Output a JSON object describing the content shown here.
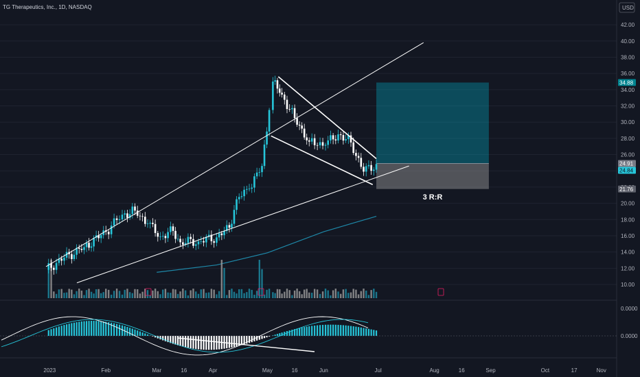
{
  "header": {
    "ticker": "TG Therapeutics, Inc., 1D, NASDAQ",
    "currency": "USD"
  },
  "colors": {
    "background": "#131722",
    "candle_up": "#26c6da",
    "candle_down": "#ffffff",
    "trendline": "#ffffff",
    "sma_line": "#1e88a8",
    "target_zone": "#00bcd4",
    "stop_zone": "#9e9e9e",
    "volume_up": "#1e8fa8",
    "volume_down": "#9e9e9e",
    "histogram_up": "#26c6da",
    "histogram_down": "#ffffff"
  },
  "annotation": {
    "rr_label": "3 R:R"
  },
  "price_tags": {
    "target": "34.88",
    "entry": "24.91",
    "last": "24.84",
    "stop": "21.76"
  },
  "oscillator_tags": {
    "top": "0.0000",
    "mid": "0.0000"
  },
  "chart_data": {
    "type": "candlestick",
    "title": "TG Therapeutics, Inc., 1D, NASDAQ",
    "y_unit": "USD",
    "ylim": [
      9,
      43
    ],
    "y_ticks": [
      "10.00",
      "12.00",
      "14.00",
      "16.00",
      "18.00",
      "20.00",
      "22.00",
      "24.00",
      "26.00",
      "28.00",
      "30.00",
      "32.00",
      "34.00",
      "36.00",
      "38.00",
      "40.00",
      "42.00"
    ],
    "x_ticks": [
      "2023",
      "Feb",
      "Mar",
      "16",
      "Apr",
      "May",
      "16",
      "Jun",
      "Jul",
      "Aug",
      "16",
      "Sep",
      "Oct",
      "17",
      "Nov"
    ],
    "close_series": [
      {
        "date": "2022-12-30",
        "close": 11.8
      },
      {
        "date": "2023-01-09",
        "close": 13.3
      },
      {
        "date": "2023-01-20",
        "close": 14.6
      },
      {
        "date": "2023-02-01",
        "close": 16.5
      },
      {
        "date": "2023-02-10",
        "close": 18.6
      },
      {
        "date": "2023-02-17",
        "close": 19.1
      },
      {
        "date": "2023-02-24",
        "close": 17.5
      },
      {
        "date": "2023-03-03",
        "close": 15.9
      },
      {
        "date": "2023-03-10",
        "close": 16.6
      },
      {
        "date": "2023-03-14",
        "close": 15.2
      },
      {
        "date": "2023-03-24",
        "close": 15.3
      },
      {
        "date": "2023-04-03",
        "close": 15.8
      },
      {
        "date": "2023-04-10",
        "close": 17.0
      },
      {
        "date": "2023-04-14",
        "close": 20.5
      },
      {
        "date": "2023-04-21",
        "close": 21.8
      },
      {
        "date": "2023-04-28",
        "close": 24.6
      },
      {
        "date": "2023-05-02",
        "close": 31.5
      },
      {
        "date": "2023-05-04",
        "close": 35.0
      },
      {
        "date": "2023-05-09",
        "close": 33.4
      },
      {
        "date": "2023-05-16",
        "close": 30.5
      },
      {
        "date": "2023-05-24",
        "close": 27.6
      },
      {
        "date": "2023-06-02",
        "close": 27.2
      },
      {
        "date": "2023-06-09",
        "close": 28.5
      },
      {
        "date": "2023-06-16",
        "close": 27.5
      },
      {
        "date": "2023-06-23",
        "close": 23.9
      },
      {
        "date": "2023-06-30",
        "close": 24.84
      }
    ],
    "sma_series": [
      {
        "date": "2023-03-01",
        "value": 11.5
      },
      {
        "date": "2023-04-03",
        "value": 12.4
      },
      {
        "date": "2023-05-01",
        "value": 13.9
      },
      {
        "date": "2023-06-01",
        "value": 16.5
      },
      {
        "date": "2023-06-30",
        "value": 18.4
      }
    ],
    "trendlines": [
      {
        "name": "upper resistance",
        "from": {
          "date": "2022-12-30",
          "price": 12.2
        },
        "to": {
          "date": "2023-07-26",
          "price": 39.8
        }
      },
      {
        "name": "lower support",
        "from": {
          "date": "2023-01-16",
          "price": 10.2
        },
        "to": {
          "date": "2023-07-18",
          "price": 24.6
        }
      },
      {
        "name": "wedge top",
        "from": {
          "date": "2023-05-07",
          "price": 35.6
        },
        "to": {
          "date": "2023-06-30",
          "price": 25.5
        }
      },
      {
        "name": "wedge bottom",
        "from": {
          "date": "2023-05-03",
          "price": 28.3
        },
        "to": {
          "date": "2023-06-28",
          "price": 22.3
        }
      }
    ],
    "long_position": {
      "entry": 24.91,
      "target": 34.88,
      "stop": 21.76,
      "risk_reward": "3 R:R"
    },
    "volume_panel": {
      "visible": true
    },
    "oscillator": {
      "zero_label": "0.0000",
      "type": "histogram with two signal lines"
    }
  }
}
